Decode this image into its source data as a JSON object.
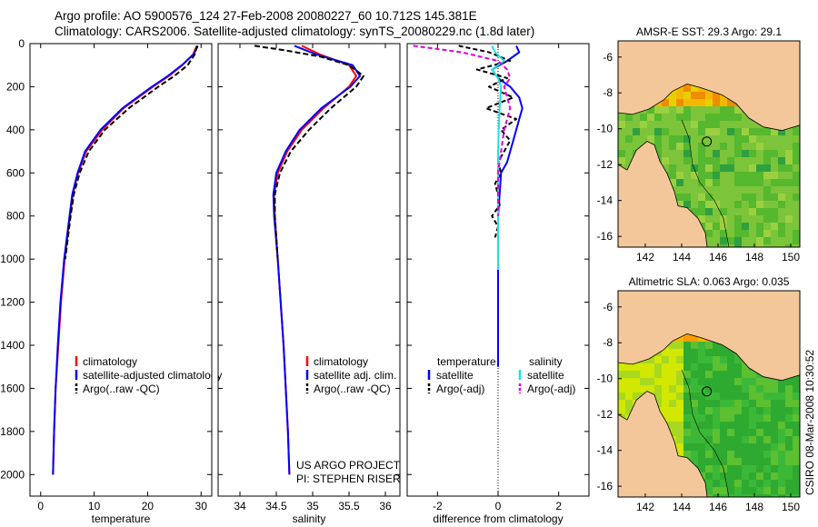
{
  "header": {
    "line1": "Argo profile: AO 5900576_124 27-Feb-2008 20080227_60 10.712S 145.381E",
    "line2": "Climatology: CARS2006. Satellite-adjusted climatology: synTS_20080229.nc (1.8d later)"
  },
  "colors": {
    "climatology": "#ff0000",
    "satellite": "#0000ff",
    "argo": "#000000",
    "diff_temp_sat": "#0000ff",
    "diff_sal_sat": "#22e0e0",
    "diff_sal_argo": "#dd00dd",
    "land": "#f4c79b"
  },
  "chart_data": [
    {
      "type": "line",
      "id": "temperature",
      "xlabel": "temperature",
      "ylabel": "",
      "xlim": [
        -2,
        32
      ],
      "ylim": [
        2100,
        0
      ],
      "xticks": [
        "0",
        "10",
        "20",
        "30"
      ],
      "xtick_values": [
        0,
        10,
        20,
        30
      ],
      "yticks": [
        "0",
        "200",
        "400",
        "600",
        "800",
        "1000",
        "1200",
        "1400",
        "1600",
        "1800",
        "2000"
      ],
      "ytick_values": [
        0,
        200,
        400,
        600,
        800,
        1000,
        1200,
        1400,
        1600,
        1800,
        2000
      ],
      "legend": [
        "climatology",
        "satellite-adjusted climatology",
        "Argo(..raw -QC)"
      ],
      "series": [
        {
          "name": "climatology",
          "color": "#ff0000",
          "dash": "",
          "depth": [
            10,
            50,
            100,
            150,
            200,
            300,
            400,
            500,
            600,
            700,
            800,
            1000,
            1200,
            1400,
            1600,
            1800,
            2000
          ],
          "values": [
            29.2,
            28.5,
            26.5,
            24.0,
            21.0,
            15.5,
            11.5,
            8.5,
            7.0,
            6.0,
            5.5,
            4.5,
            3.8,
            3.3,
            2.8,
            2.5,
            2.3
          ]
        },
        {
          "name": "satellite-adjusted climatology",
          "color": "#0000ff",
          "dash": "",
          "depth": [
            10,
            50,
            100,
            150,
            200,
            300,
            400,
            500,
            600,
            700,
            800,
            1000,
            1200,
            1400,
            1600,
            1800,
            2000
          ],
          "values": [
            29.4,
            28.6,
            26.4,
            23.8,
            20.8,
            15.3,
            11.2,
            8.3,
            6.9,
            5.9,
            5.4,
            4.4,
            3.7,
            3.2,
            2.8,
            2.5,
            2.3
          ]
        },
        {
          "name": "Argo(..raw -QC)",
          "color": "#000000",
          "dash": "6,3",
          "depth": [
            10,
            50,
            100,
            150,
            200,
            300,
            400,
            500,
            600,
            700,
            800,
            1000
          ],
          "values": [
            29.3,
            28.8,
            27.5,
            25.0,
            22.0,
            16.5,
            12.0,
            9.0,
            7.3,
            6.2,
            5.6,
            4.6
          ]
        }
      ]
    },
    {
      "type": "line",
      "id": "salinity",
      "xlabel": "salinity",
      "xlim": [
        33.7,
        36.2
      ],
      "ylim": [
        2100,
        0
      ],
      "xticks": [
        "34",
        "34.5",
        "35",
        "35.5",
        "36"
      ],
      "xtick_values": [
        34,
        34.5,
        35,
        35.5,
        36
      ],
      "legend": [
        "climatology",
        "satellite adj. clim.",
        "Argo(..raw -QC)"
      ],
      "annotations": [
        "US ARGO PROJECT",
        "PI: STEPHEN RISER"
      ],
      "series": [
        {
          "name": "climatology",
          "color": "#ff0000",
          "dash": "",
          "depth": [
            10,
            50,
            100,
            150,
            200,
            300,
            400,
            500,
            600,
            700,
            800,
            1000,
            1200,
            1400,
            1600,
            1800,
            2000
          ],
          "values": [
            34.85,
            35.1,
            35.5,
            35.6,
            35.5,
            35.15,
            34.85,
            34.65,
            34.52,
            34.47,
            34.48,
            34.52,
            34.56,
            34.6,
            34.63,
            34.66,
            34.68
          ]
        },
        {
          "name": "satellite adj. clim.",
          "color": "#0000ff",
          "dash": "",
          "depth": [
            10,
            50,
            100,
            150,
            200,
            300,
            400,
            500,
            600,
            700,
            800,
            1000,
            1200,
            1400,
            1600,
            1800,
            2000
          ],
          "values": [
            34.75,
            35.05,
            35.55,
            35.65,
            35.52,
            35.12,
            34.82,
            34.63,
            34.5,
            34.46,
            34.47,
            34.52,
            34.56,
            34.6,
            34.63,
            34.66,
            34.68
          ]
        },
        {
          "name": "Argo(..raw -QC)",
          "color": "#000000",
          "dash": "6,3",
          "depth": [
            10,
            30,
            60,
            100,
            150,
            200,
            300,
            400,
            500,
            600,
            700,
            800,
            900,
            1000
          ],
          "values": [
            34.2,
            34.6,
            35.1,
            35.5,
            35.7,
            35.6,
            35.25,
            34.95,
            34.7,
            34.55,
            34.48,
            34.48,
            34.5,
            34.52
          ]
        }
      ]
    },
    {
      "type": "line",
      "id": "difference",
      "xlabel": "difference from climatology",
      "xlim": [
        -3,
        3
      ],
      "ylim": [
        2100,
        0
      ],
      "xticks": [
        "-2",
        "0",
        "2"
      ],
      "xtick_values": [
        -2,
        0,
        2
      ],
      "legend_headers": [
        "temperature",
        "salinity"
      ],
      "legend": [
        "satellite",
        "Argo(-adj)",
        "satellite",
        "Argo(-adj)"
      ],
      "series": [
        {
          "name": "temperature satellite",
          "color": "#0000ff",
          "dash": "",
          "depth": [
            10,
            40,
            80,
            120,
            160,
            200,
            250,
            300,
            350,
            400,
            450,
            500,
            550,
            600,
            700,
            800,
            900,
            1000,
            1100,
            1200,
            1300,
            1400,
            1500
          ],
          "values": [
            0.6,
            0.7,
            0.3,
            -0.2,
            0.0,
            0.4,
            0.7,
            0.8,
            0.7,
            0.6,
            0.5,
            0.4,
            0.3,
            0.1,
            0.05,
            0.0,
            0.0,
            0.0,
            0.0,
            0.0,
            0.0,
            0.0,
            0.0
          ]
        },
        {
          "name": "temperature Argo(-adj)",
          "color": "#000000",
          "dash": "5,3",
          "depth": [
            10,
            40,
            80,
            120,
            160,
            200,
            250,
            300,
            350,
            400,
            450,
            500,
            550,
            600,
            650,
            700,
            750,
            800,
            850,
            900
          ],
          "values": [
            -1.3,
            -0.3,
            0.4,
            -0.7,
            0.3,
            -0.3,
            0.5,
            -0.4,
            0.6,
            0.1,
            0.4,
            0.2,
            0.0,
            0.1,
            -0.1,
            0.0,
            0.05,
            -0.2,
            0.0,
            -0.1
          ]
        },
        {
          "name": "salinity satellite",
          "color": "#22e0e0",
          "dash": "",
          "depth": [
            10,
            40,
            80,
            120,
            160,
            200,
            300,
            400,
            500,
            600,
            700,
            800,
            900,
            1000,
            1050
          ],
          "values": [
            -0.2,
            -0.1,
            0.2,
            -0.2,
            0.0,
            0.1,
            0.05,
            0.02,
            0.0,
            0.0,
            0.0,
            0.0,
            0.0,
            0.0,
            0.0
          ]
        },
        {
          "name": "salinity Argo(-adj)",
          "color": "#dd00dd",
          "dash": "5,3",
          "depth": [
            10,
            40,
            80,
            120,
            160,
            200,
            300,
            400,
            500,
            600,
            700,
            800
          ],
          "values": [
            -2.8,
            -1.2,
            0.0,
            0.3,
            0.4,
            0.2,
            0.4,
            0.2,
            0.1,
            0.0,
            0.0,
            0.0
          ]
        }
      ]
    },
    {
      "type": "heatmap",
      "id": "sst-map",
      "title": "AMSR-E SST: 29.3 Argo: 29.1",
      "xlim": [
        140.5,
        150.5
      ],
      "ylim": [
        -16.6,
        -5.1
      ],
      "xticks": [
        "142",
        "144",
        "146",
        "148",
        "150"
      ],
      "xtick_values": [
        142,
        144,
        146,
        148,
        150
      ],
      "yticks": [
        "-6",
        "-8",
        "-10",
        "-12",
        "-14",
        "-16"
      ],
      "ytick_values": [
        -6,
        -8,
        -10,
        -12,
        -14,
        -16
      ],
      "argo_position": [
        145.381,
        -10.712
      ]
    },
    {
      "type": "heatmap",
      "id": "sla-map",
      "title": "Altimetric SLA: 0.063 Argo: 0.035",
      "xlim": [
        140.5,
        150.5
      ],
      "ylim": [
        -16.6,
        -5.1
      ],
      "xticks": [
        "142",
        "144",
        "146",
        "148",
        "150"
      ],
      "xtick_values": [
        142,
        144,
        146,
        148,
        150
      ],
      "yticks": [
        "-6",
        "-8",
        "-10",
        "-12",
        "-14",
        "-16"
      ],
      "ytick_values": [
        -6,
        -8,
        -10,
        -12,
        -14,
        -16
      ],
      "argo_position": [
        145.381,
        -10.712
      ]
    }
  ],
  "footer": {
    "credit": "CSIRO 08-Mar-2008 10:30:52"
  }
}
